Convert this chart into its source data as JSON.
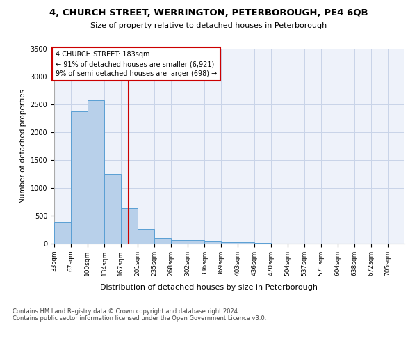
{
  "title1": "4, CHURCH STREET, WERRINGTON, PETERBOROUGH, PE4 6QB",
  "title2": "Size of property relative to detached houses in Peterborough",
  "xlabel": "Distribution of detached houses by size in Peterborough",
  "ylabel": "Number of detached properties",
  "footnote": "Contains HM Land Registry data © Crown copyright and database right 2024.\nContains public sector information licensed under the Open Government Licence v3.0.",
  "bin_labels": [
    "33sqm",
    "67sqm",
    "100sqm",
    "134sqm",
    "167sqm",
    "201sqm",
    "235sqm",
    "268sqm",
    "302sqm",
    "336sqm",
    "369sqm",
    "403sqm",
    "436sqm",
    "470sqm",
    "504sqm",
    "537sqm",
    "571sqm",
    "604sqm",
    "638sqm",
    "672sqm",
    "705sqm"
  ],
  "bar_values": [
    390,
    2380,
    2580,
    1250,
    640,
    260,
    100,
    60,
    60,
    50,
    30,
    20,
    10,
    5,
    5,
    3,
    2,
    2,
    1,
    1,
    1
  ],
  "bar_color": "#b8d0ea",
  "bar_edge_color": "#5a9fd4",
  "vline_x": 183,
  "vline_color": "#cc0000",
  "annotation_line1": "4 CHURCH STREET: 183sqm",
  "annotation_line2": "← 91% of detached houses are smaller (6,921)",
  "annotation_line3": "9% of semi-detached houses are larger (698) →",
  "annotation_box_edgecolor": "#cc0000",
  "grid_color": "#c8d4e8",
  "background_color": "#e8eef8",
  "plot_bg_color": "#eef2fa",
  "ylim": [
    0,
    3500
  ],
  "yticks": [
    0,
    500,
    1000,
    1500,
    2000,
    2500,
    3000,
    3500
  ],
  "bin_edges": [
    33,
    67,
    100,
    134,
    167,
    201,
    235,
    268,
    302,
    336,
    369,
    403,
    436,
    470,
    504,
    537,
    571,
    604,
    638,
    672,
    705,
    739
  ],
  "title1_fontsize": 9.5,
  "title2_fontsize": 8,
  "ylabel_fontsize": 7.5,
  "xlabel_fontsize": 8,
  "tick_fontsize": 6.5,
  "footnote_fontsize": 6
}
